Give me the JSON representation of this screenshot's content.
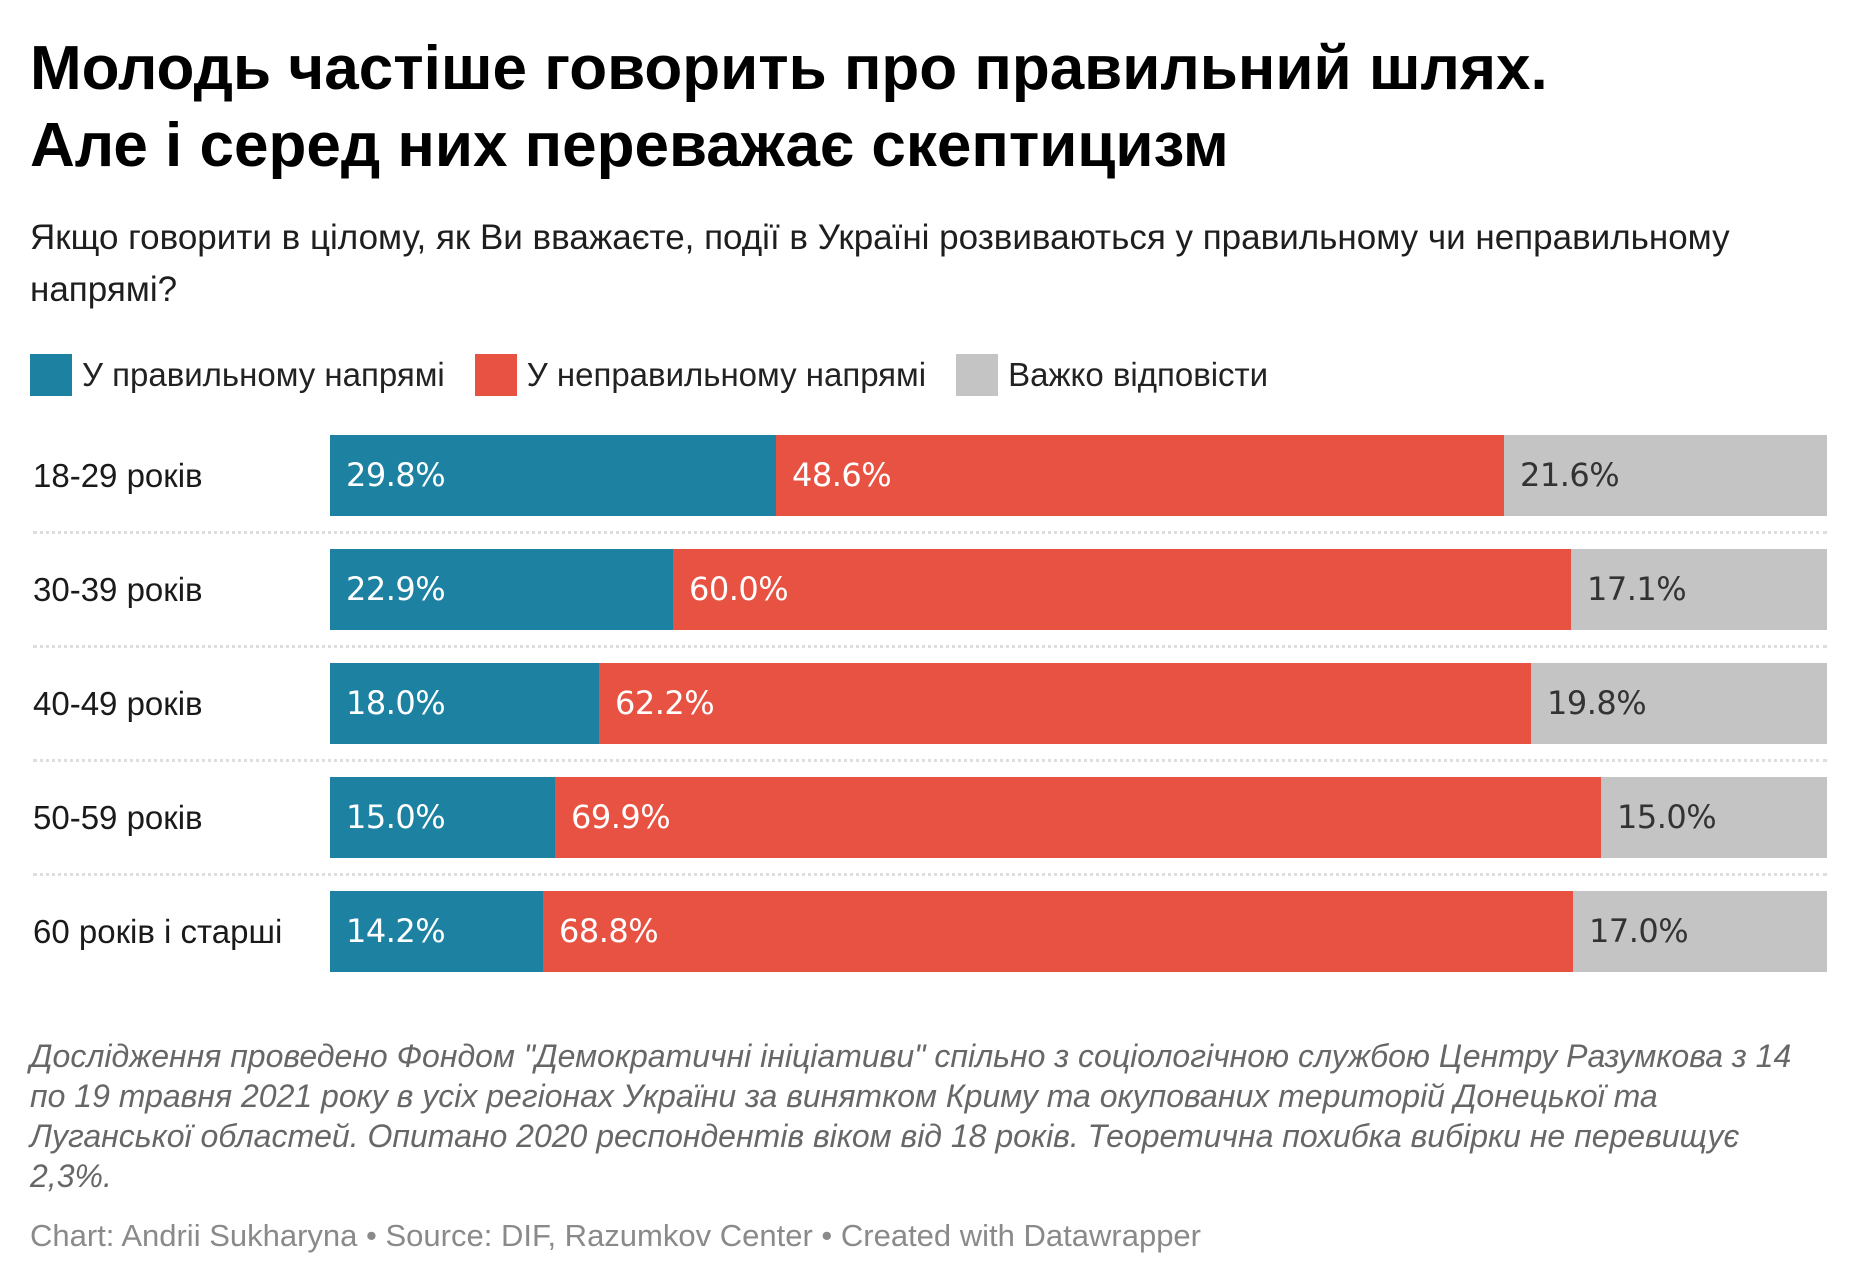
{
  "header": {
    "title_lines": [
      "Молодь частіше говорить про правильний шлях.",
      "Але і серед них переважає скептицизм"
    ],
    "subtitle": "Якщо говорити в цілому, як Ви вважаєте, події в Україні розвиваються у правильному чи неправильному напрямі?"
  },
  "legend": [
    {
      "label": "У правильному напрямі",
      "color": "#1d81a2"
    },
    {
      "label": "У неправильному напрямі",
      "color": "#e85242"
    },
    {
      "label": "Важко відповісти",
      "color": "#c4c4c4"
    }
  ],
  "chart_data": {
    "type": "bar",
    "orientation": "horizontal",
    "stacked": true,
    "title": "Молодь частіше говорить про правильний шлях. Але і серед них переважає скептицизм",
    "subtitle": "Якщо говорити в цілому, як Ви вважаєте, події в Україні розвиваються у правильному чи неправильному напрямі?",
    "xlabel": "",
    "ylabel": "",
    "xlim": [
      0,
      100
    ],
    "grid": false,
    "legend_position": "top-left",
    "categories": [
      "18-29 років",
      "30-39 років",
      "40-49 років",
      "50-59 років",
      "60 років і старші"
    ],
    "series": [
      {
        "name": "У правильному напрямі",
        "color": "#1d81a2",
        "label_color": "#ffffff",
        "values": [
          29.8,
          22.9,
          18.0,
          15.0,
          14.2
        ]
      },
      {
        "name": "У неправильному напрямі",
        "color": "#e85242",
        "label_color": "#ffffff",
        "values": [
          48.6,
          60.0,
          62.2,
          69.9,
          68.8
        ]
      },
      {
        "name": "Важко відповісти",
        "color": "#c4c4c4",
        "label_color": "#333333",
        "values": [
          21.6,
          17.1,
          19.8,
          15.0,
          17.0
        ]
      }
    ],
    "value_format": "{v}%",
    "data_labels": [
      [
        "29.8%",
        "48.6%",
        "21.6%"
      ],
      [
        "22.9%",
        "60.0%",
        "17.1%"
      ],
      [
        "18.0%",
        "62.2%",
        "19.8%"
      ],
      [
        "15.0%",
        "69.9%",
        "15.0%"
      ],
      [
        "14.2%",
        "68.8%",
        "17.0%"
      ]
    ]
  },
  "footer": {
    "notes": "Дослідження проведено Фондом \"Демократичні ініціативи\" спільно з соціологічною службою Центру Разумкова з 14 по 19 травня 2021 року в усіх регіонах України за винятком Криму та окупованих територій Донецької та Луганської областей. Опитано 2020 респондентів віком від 18 років. Теоретична похибка вибірки не перевищує 2,3%.",
    "byline": {
      "chart_prefix": "Chart: ",
      "author": "Andrii Sukharyna",
      "sep1": " • ",
      "source_prefix": "Source: ",
      "source": "DIF, Razumkov Center",
      "sep2": " • ",
      "created": "Created with Datawrapper"
    }
  }
}
